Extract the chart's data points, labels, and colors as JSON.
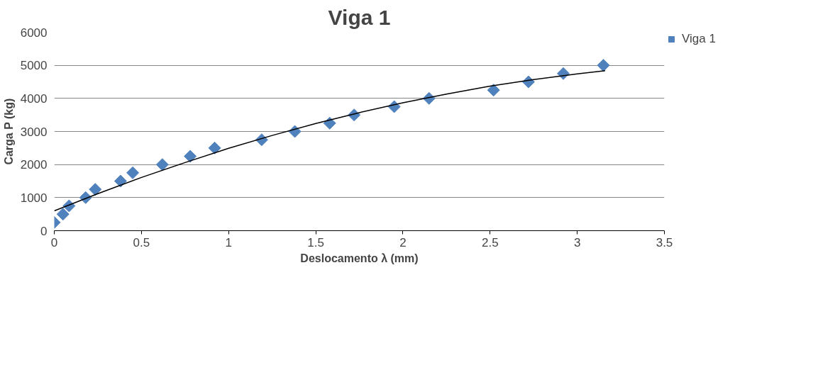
{
  "chart_data": {
    "type": "scatter",
    "title": "Viga 1",
    "xlabel": "Deslocamento λ (mm)",
    "ylabel": "Carga P (kg)",
    "xlim": [
      0,
      3.5
    ],
    "xticks": [
      0,
      0.5,
      1,
      1.5,
      2,
      2.5,
      3,
      3.5
    ],
    "ylim": [
      0,
      6000
    ],
    "yticks": [
      0,
      1000,
      2000,
      3000,
      4000,
      5000,
      6000
    ],
    "grid": "y",
    "legend": "right",
    "series": [
      {
        "name": "Viga 1",
        "color": "#4f81bd",
        "marker": "diamond",
        "x": [
          0,
          0.05,
          0.085,
          0.18,
          0.235,
          0.38,
          0.45,
          0.62,
          0.78,
          0.92,
          1.19,
          1.38,
          1.58,
          1.72,
          1.95,
          2.15,
          2.52,
          2.72,
          2.92,
          3.15
        ],
        "values": [
          250,
          500,
          750,
          1000,
          1250,
          1500,
          1750,
          2000,
          2250,
          2500,
          2750,
          3000,
          3250,
          3500,
          3750,
          4000,
          4250,
          4500,
          4750,
          5000
        ]
      },
      {
        "type": "line",
        "color": "#000000",
        "marker": "none",
        "x": [
          0,
          0.25,
          0.5,
          0.75,
          1,
          1.25,
          1.5,
          1.75,
          2,
          2.25,
          2.5,
          2.75,
          3,
          3.16
        ],
        "values": [
          600,
          1120,
          1610,
          2060,
          2490,
          2880,
          3240,
          3570,
          3870,
          4130,
          4370,
          4570,
          4740,
          4840
        ]
      }
    ]
  }
}
